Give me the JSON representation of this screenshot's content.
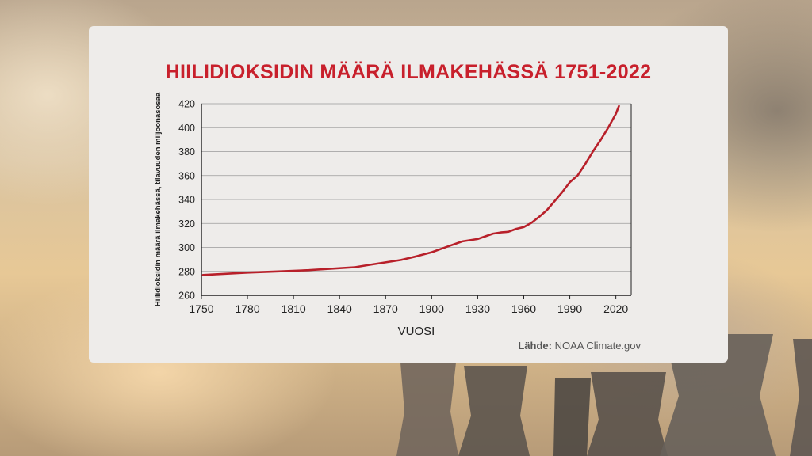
{
  "source": {
    "label": "Lähde:",
    "text": "NOAA Climate.gov"
  },
  "colors": {
    "line": "#b8202a",
    "title": "#c8202c"
  },
  "chart_data": {
    "type": "line",
    "title": "HIILIDIOKSIDIN MÄÄRÄ ILMAKEHÄSSÄ 1751-2022",
    "xlabel": "VUOSI",
    "ylabel": "Hiilidioksidin määrä ilmakehässä, tilavuuden miljoonasosaa",
    "xlim": [
      1750,
      2030
    ],
    "ylim": [
      260,
      420
    ],
    "xticks": [
      1750,
      1780,
      1810,
      1840,
      1870,
      1900,
      1930,
      1960,
      1990,
      2020
    ],
    "yticks": [
      260,
      280,
      300,
      320,
      340,
      360,
      380,
      400,
      420
    ],
    "grid": true,
    "series": [
      {
        "x": [
          1751,
          1780,
          1800,
          1820,
          1850,
          1860,
          1880,
          1890,
          1900,
          1910,
          1920,
          1930,
          1940,
          1945,
          1950,
          1955,
          1960,
          1965,
          1970,
          1975,
          1980,
          1985,
          1990,
          1995,
          2000,
          2005,
          2010,
          2015,
          2020,
          2022
        ],
        "y": [
          277,
          279,
          280,
          281,
          283.5,
          285.5,
          289.5,
          292.5,
          296,
          300.5,
          305,
          307,
          311.5,
          312.5,
          313,
          315.5,
          317,
          320.5,
          325.5,
          331,
          338.5,
          346,
          354.5,
          360,
          369.5,
          380,
          389.5,
          400,
          411.5,
          418
        ]
      }
    ]
  }
}
